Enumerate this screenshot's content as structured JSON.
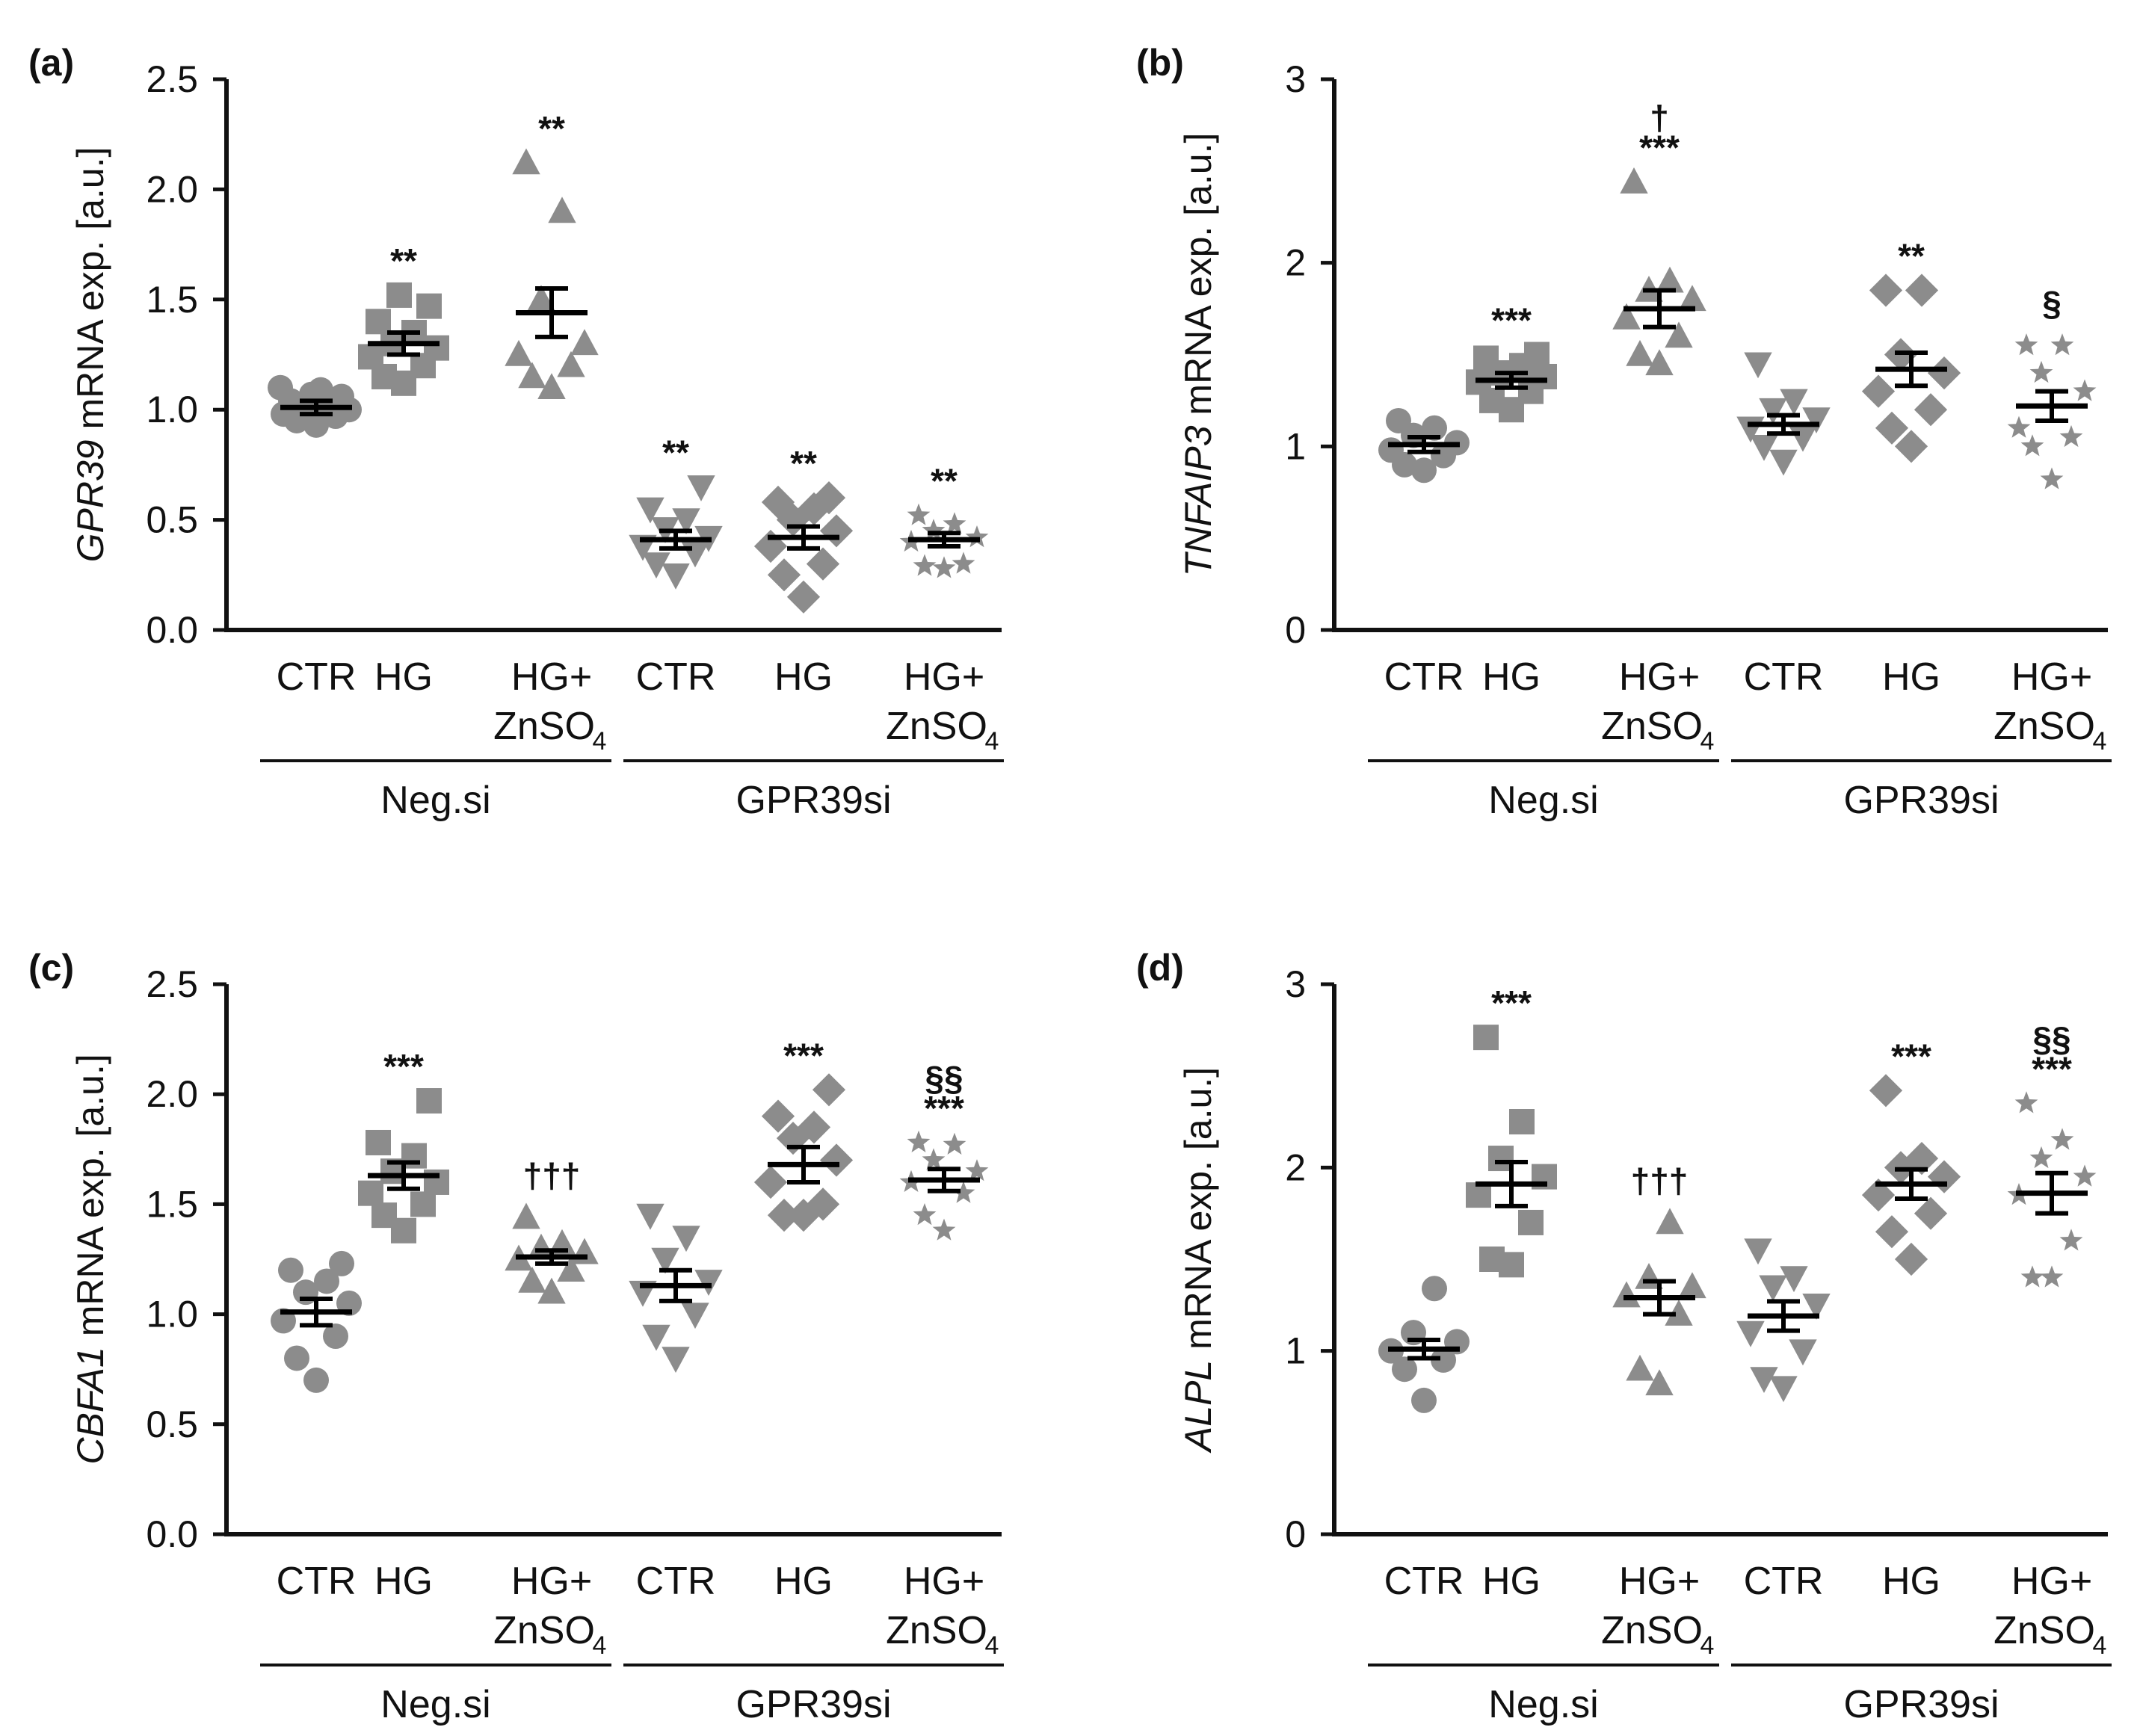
{
  "colors": {
    "marker": "#8c8c8c",
    "axis": "#111111",
    "mean": "#000000"
  },
  "categories": [
    "CTR",
    "HG",
    "HG+ ZnSO4",
    "CTR",
    "HG",
    "HG+ ZnSO4"
  ],
  "labels": {
    "ctr": "CTR",
    "hg": "HG",
    "hgplus": "HG+",
    "zn": "ZnSO",
    "zn_sub": "4",
    "neg": "Neg.si",
    "gpr": "GPR39si",
    "mrna": " mRNA exp. [a.u.]"
  },
  "groups": [
    "Neg.si",
    "GPR39si"
  ],
  "chart_data": [
    {
      "panel": "(a)",
      "gene": "GPR39",
      "type": "scatter",
      "ylim": [
        0,
        2.5
      ],
      "yticks": [
        "0.0",
        "0.5",
        "1.0",
        "1.5",
        "2.0",
        "2.5"
      ],
      "series": [
        {
          "name": "Neg.si CTR",
          "marker": "circle",
          "mean": 1.01,
          "sem": 0.03,
          "points": [
            0.93,
            0.95,
            0.97,
            0.98,
            1.0,
            1.01,
            1.02,
            1.04,
            1.06,
            1.07,
            1.09,
            1.1
          ],
          "sig": ""
        },
        {
          "name": "Neg.si HG",
          "marker": "square",
          "mean": 1.3,
          "sem": 0.05,
          "points": [
            1.12,
            1.15,
            1.2,
            1.24,
            1.28,
            1.3,
            1.35,
            1.4,
            1.47,
            1.52
          ],
          "sig": "**"
        },
        {
          "name": "Neg.si HG+ZnSO4",
          "marker": "triangle-up",
          "mean": 1.44,
          "sem": 0.11,
          "points": [
            1.1,
            1.15,
            1.2,
            1.25,
            1.3,
            1.5,
            1.9,
            2.12
          ],
          "sig": "**"
        },
        {
          "name": "GPR39si CTR",
          "marker": "triangle-down",
          "mean": 0.41,
          "sem": 0.04,
          "points": [
            0.25,
            0.3,
            0.35,
            0.38,
            0.42,
            0.46,
            0.5,
            0.55,
            0.65
          ],
          "sig": "**"
        },
        {
          "name": "GPR39si HG",
          "marker": "diamond",
          "mean": 0.42,
          "sem": 0.05,
          "points": [
            0.15,
            0.25,
            0.3,
            0.38,
            0.45,
            0.5,
            0.55,
            0.58,
            0.6
          ],
          "sig": "**"
        },
        {
          "name": "GPR39si HG+ZnSO4",
          "marker": "star",
          "mean": 0.41,
          "sem": 0.03,
          "points": [
            0.28,
            0.29,
            0.3,
            0.4,
            0.42,
            0.45,
            0.48,
            0.52
          ],
          "sig": "**"
        }
      ]
    },
    {
      "panel": "(b)",
      "gene": "TNFAIP3",
      "type": "scatter",
      "ylim": [
        0,
        3
      ],
      "yticks": [
        "0",
        "1",
        "2",
        "3"
      ],
      "series": [
        {
          "name": "Neg.si CTR",
          "marker": "circle",
          "mean": 1.01,
          "sem": 0.04,
          "points": [
            0.87,
            0.9,
            0.95,
            0.98,
            1.02,
            1.06,
            1.1,
            1.14
          ],
          "sig": ""
        },
        {
          "name": "Neg.si HG",
          "marker": "square",
          "mean": 1.36,
          "sem": 0.04,
          "points": [
            1.2,
            1.25,
            1.3,
            1.35,
            1.38,
            1.4,
            1.44,
            1.48,
            1.5
          ],
          "sig": "***"
        },
        {
          "name": "Neg.si HG+ZnSO4",
          "marker": "triangle-up",
          "mean": 1.75,
          "sem": 0.1,
          "points": [
            1.45,
            1.5,
            1.6,
            1.7,
            1.8,
            1.85,
            1.9,
            2.44
          ],
          "sig": "***",
          "sig2": "†"
        },
        {
          "name": "GPR39si CTR",
          "marker": "triangle-down",
          "mean": 1.12,
          "sem": 0.05,
          "points": [
            0.92,
            1.0,
            1.05,
            1.1,
            1.15,
            1.2,
            1.25,
            1.45
          ],
          "sig": ""
        },
        {
          "name": "GPR39si HG",
          "marker": "diamond",
          "mean": 1.42,
          "sem": 0.09,
          "points": [
            1.0,
            1.1,
            1.2,
            1.3,
            1.4,
            1.5,
            1.85,
            1.85
          ],
          "sig": "**"
        },
        {
          "name": "GPR39si HG+ZnSO4",
          "marker": "star",
          "mean": 1.22,
          "sem": 0.08,
          "points": [
            0.82,
            1.0,
            1.05,
            1.1,
            1.3,
            1.4,
            1.55,
            1.55
          ],
          "sig": "§"
        }
      ]
    },
    {
      "panel": "(c)",
      "gene": "CBFA1",
      "type": "scatter",
      "ylim": [
        0,
        2.5
      ],
      "yticks": [
        "0.0",
        "0.5",
        "1.0",
        "1.5",
        "2.0",
        "2.5"
      ],
      "series": [
        {
          "name": "Neg.si CTR",
          "marker": "circle",
          "mean": 1.01,
          "sem": 0.06,
          "points": [
            0.7,
            0.8,
            0.9,
            0.97,
            1.05,
            1.1,
            1.15,
            1.2,
            1.23
          ],
          "sig": ""
        },
        {
          "name": "Neg.si HG",
          "marker": "square",
          "mean": 1.63,
          "sem": 0.06,
          "points": [
            1.38,
            1.45,
            1.5,
            1.55,
            1.6,
            1.65,
            1.72,
            1.78,
            1.97
          ],
          "sig": "***"
        },
        {
          "name": "Neg.si HG+ZnSO4",
          "marker": "triangle-up",
          "mean": 1.26,
          "sem": 0.03,
          "points": [
            1.1,
            1.15,
            1.2,
            1.25,
            1.28,
            1.3,
            1.32,
            1.44
          ],
          "sig": "†††"
        },
        {
          "name": "GPR39si CTR",
          "marker": "triangle-down",
          "mean": 1.13,
          "sem": 0.07,
          "points": [
            0.8,
            0.9,
            1.0,
            1.1,
            1.15,
            1.25,
            1.35,
            1.45
          ],
          "sig": ""
        },
        {
          "name": "GPR39si HG",
          "marker": "diamond",
          "mean": 1.68,
          "sem": 0.08,
          "points": [
            1.45,
            1.45,
            1.5,
            1.6,
            1.7,
            1.8,
            1.85,
            1.9,
            2.02
          ],
          "sig": "***"
        },
        {
          "name": "GPR39si HG+ZnSO4",
          "marker": "star",
          "mean": 1.61,
          "sem": 0.05,
          "points": [
            1.38,
            1.45,
            1.55,
            1.6,
            1.65,
            1.7,
            1.77,
            1.78
          ],
          "sig": "***",
          "sig2": "§§"
        }
      ]
    },
    {
      "panel": "(d)",
      "gene": "ALPL",
      "type": "scatter",
      "ylim": [
        0,
        3
      ],
      "yticks": [
        "0",
        "1",
        "2",
        "3"
      ],
      "series": [
        {
          "name": "Neg.si CTR",
          "marker": "circle",
          "mean": 1.01,
          "sem": 0.05,
          "points": [
            0.73,
            0.9,
            0.95,
            1.0,
            1.05,
            1.1,
            1.34
          ],
          "sig": ""
        },
        {
          "name": "Neg.si HG",
          "marker": "square",
          "mean": 1.91,
          "sem": 0.12,
          "points": [
            1.47,
            1.5,
            1.7,
            1.85,
            1.95,
            2.05,
            2.25,
            2.71
          ],
          "sig": "***"
        },
        {
          "name": "Neg.si HG+ZnSO4",
          "marker": "triangle-up",
          "mean": 1.29,
          "sem": 0.09,
          "points": [
            0.82,
            0.9,
            1.2,
            1.3,
            1.35,
            1.4,
            1.7
          ],
          "sig": "†††"
        },
        {
          "name": "GPR39si CTR",
          "marker": "triangle-down",
          "mean": 1.19,
          "sem": 0.08,
          "points": [
            0.8,
            0.85,
            1.0,
            1.1,
            1.25,
            1.35,
            1.4,
            1.55
          ],
          "sig": ""
        },
        {
          "name": "GPR39si HG",
          "marker": "diamond",
          "mean": 1.91,
          "sem": 0.08,
          "points": [
            1.5,
            1.65,
            1.75,
            1.85,
            1.95,
            2.0,
            2.05,
            2.42
          ],
          "sig": "***"
        },
        {
          "name": "GPR39si HG+ZnSO4",
          "marker": "star",
          "mean": 1.86,
          "sem": 0.11,
          "points": [
            1.4,
            1.4,
            1.6,
            1.85,
            1.95,
            2.05,
            2.15,
            2.35
          ],
          "sig": "***",
          "sig2": "§§"
        }
      ]
    }
  ]
}
